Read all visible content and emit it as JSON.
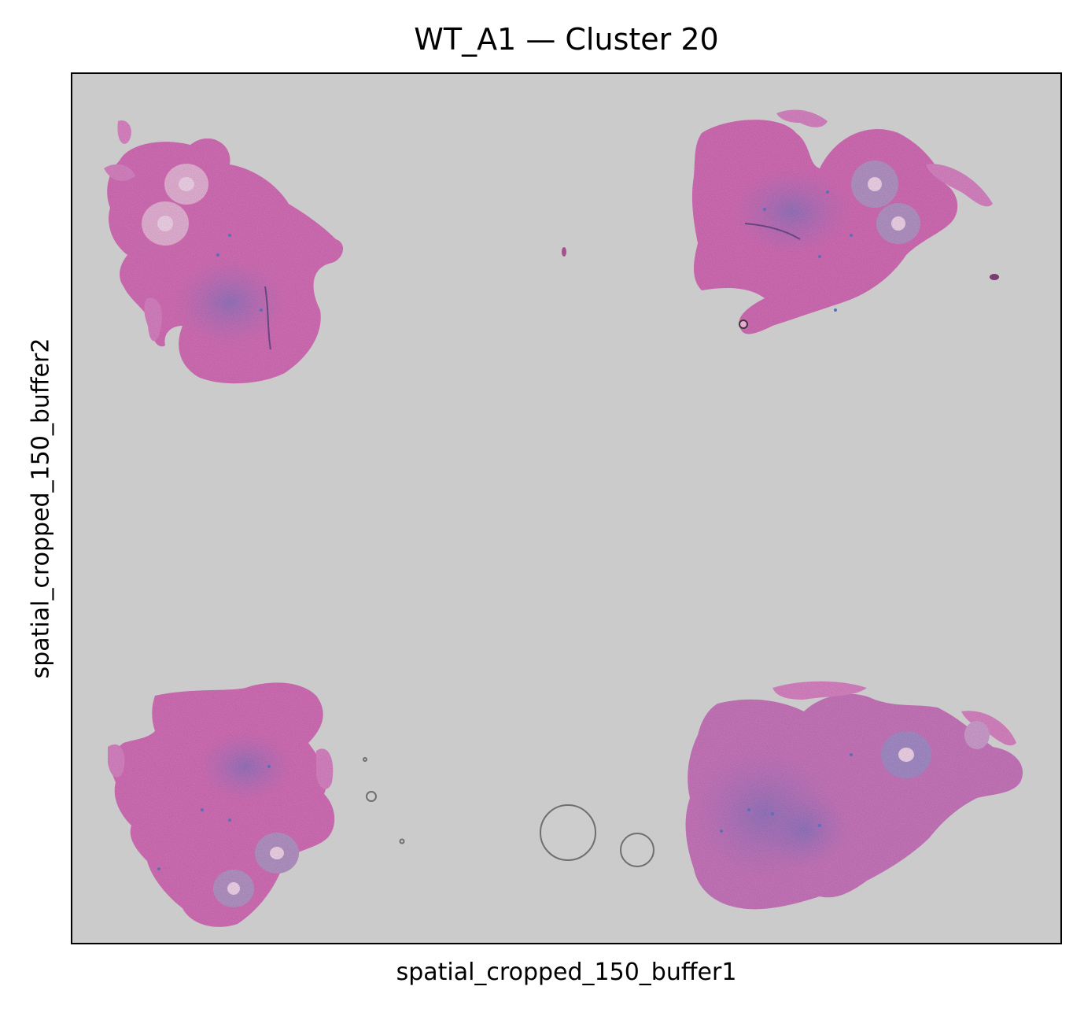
{
  "title": "WT_A1 — Cluster 20",
  "xlabel": "spatial_cropped_150_buffer1",
  "ylabel": "spatial_cropped_150_buffer2",
  "background_color": "#cccbcc",
  "tissue_colors": {
    "pink": "#d86fb6",
    "purple": "#a47ab8",
    "blue_speckle": "#5b6fb8",
    "pale": "#e6b9d6"
  },
  "tissue_sections": [
    "top-left",
    "top-right",
    "bottom-left",
    "bottom-right"
  ],
  "ticks": "none"
}
